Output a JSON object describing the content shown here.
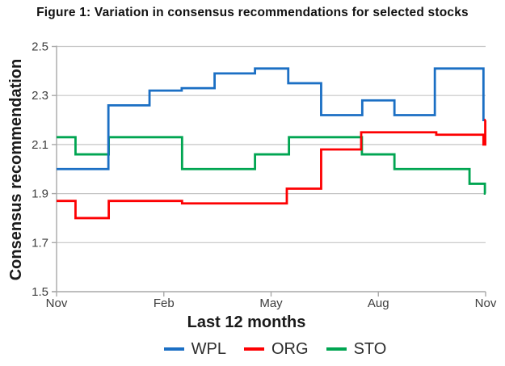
{
  "chart_data": {
    "type": "line",
    "subtype": "step",
    "title": "Figure 1: Variation in consensus recommendations for selected stocks",
    "xlabel": "Last 12 months",
    "ylabel": "Consensus recommendation",
    "ylim": [
      1.5,
      2.5
    ],
    "yticks": [
      {
        "v": 2.5,
        "label": "2.5"
      },
      {
        "v": 2.3,
        "label": "2.3"
      },
      {
        "v": 2.1,
        "label": "2.1"
      },
      {
        "v": 1.9,
        "label": "1.9"
      },
      {
        "v": 1.7,
        "label": "1.7"
      },
      {
        "v": 1.5,
        "label": "1.5"
      }
    ],
    "xticks": [
      {
        "m": 0,
        "label": "Nov"
      },
      {
        "m": 3,
        "label": "Feb"
      },
      {
        "m": 6,
        "label": "May"
      },
      {
        "m": 9,
        "label": "Aug"
      },
      {
        "m": 12,
        "label": "Nov"
      }
    ],
    "x_range_months": [
      0,
      12
    ],
    "grid": "horizontal-only",
    "legend_position": "bottom-center",
    "series": [
      {
        "name": "WPL",
        "color": "#1b6fc4",
        "points": [
          [
            0,
            2.0
          ],
          [
            1.45,
            2.26
          ],
          [
            2.6,
            2.32
          ],
          [
            3.5,
            2.33
          ],
          [
            4.42,
            2.39
          ],
          [
            5.55,
            2.41
          ],
          [
            6.48,
            2.35
          ],
          [
            7.4,
            2.22
          ],
          [
            8.55,
            2.28
          ],
          [
            9.45,
            2.22
          ],
          [
            10.58,
            2.41
          ],
          [
            11.94,
            2.2
          ]
        ]
      },
      {
        "name": "ORG",
        "color": "#fd0002",
        "points": [
          [
            0,
            1.87
          ],
          [
            0.53,
            1.8
          ],
          [
            1.46,
            1.87
          ],
          [
            3.51,
            1.86
          ],
          [
            6.44,
            1.92
          ],
          [
            7.4,
            2.08
          ],
          [
            8.52,
            2.15
          ],
          [
            10.62,
            2.14
          ],
          [
            11.94,
            2.1
          ],
          [
            11.99,
            2.2
          ]
        ]
      },
      {
        "name": "STO",
        "color": "#00a551",
        "points": [
          [
            0,
            2.13
          ],
          [
            0.53,
            2.06
          ],
          [
            1.46,
            2.13
          ],
          [
            3.51,
            2.0
          ],
          [
            5.55,
            2.06
          ],
          [
            6.5,
            2.13
          ],
          [
            8.54,
            2.06
          ],
          [
            9.45,
            2.0
          ],
          [
            11.55,
            1.94
          ],
          [
            11.98,
            1.9
          ]
        ]
      }
    ],
    "colors": {
      "gridline": "#c6c6c6",
      "axis": "#a9a9a9",
      "tick_text": "#3d3d3d",
      "title_text": "#111111"
    }
  }
}
